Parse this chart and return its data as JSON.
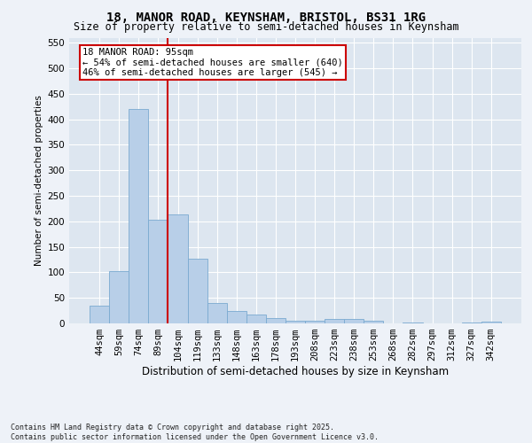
{
  "title1": "18, MANOR ROAD, KEYNSHAM, BRISTOL, BS31 1RG",
  "title2": "Size of property relative to semi-detached houses in Keynsham",
  "xlabel": "Distribution of semi-detached houses by size in Keynsham",
  "ylabel": "Number of semi-detached properties",
  "categories": [
    "44sqm",
    "59sqm",
    "74sqm",
    "89sqm",
    "104sqm",
    "119sqm",
    "133sqm",
    "148sqm",
    "163sqm",
    "178sqm",
    "193sqm",
    "208sqm",
    "223sqm",
    "238sqm",
    "253sqm",
    "268sqm",
    "282sqm",
    "297sqm",
    "312sqm",
    "327sqm",
    "342sqm"
  ],
  "values": [
    35,
    102,
    420,
    203,
    213,
    126,
    40,
    25,
    18,
    10,
    5,
    5,
    8,
    8,
    5,
    0,
    2,
    0,
    0,
    2,
    3
  ],
  "bar_color": "#b8cfe8",
  "bar_edge_color": "#7aaad0",
  "vline_color": "#cc0000",
  "vline_x": 3.5,
  "annotation_title": "18 MANOR ROAD: 95sqm",
  "annotation_line1": "← 54% of semi-detached houses are smaller (640)",
  "annotation_line2": "46% of semi-detached houses are larger (545) →",
  "annotation_box_color": "#cc0000",
  "ylim": [
    0,
    560
  ],
  "yticks": [
    0,
    50,
    100,
    150,
    200,
    250,
    300,
    350,
    400,
    450,
    500,
    550
  ],
  "footer1": "Contains HM Land Registry data © Crown copyright and database right 2025.",
  "footer2": "Contains public sector information licensed under the Open Government Licence v3.0.",
  "bg_color": "#eef2f8",
  "plot_bg_color": "#dde6f0",
  "title1_fontsize": 10,
  "title2_fontsize": 8.5,
  "xlabel_fontsize": 8.5,
  "ylabel_fontsize": 7.5,
  "tick_fontsize": 7.5,
  "footer_fontsize": 6.0,
  "ann_fontsize": 7.5
}
